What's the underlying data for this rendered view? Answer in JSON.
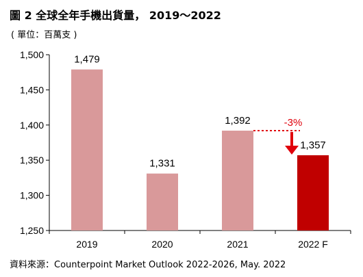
{
  "title": "圖 2 全球全年手機出貨量， 2019～2022",
  "unit_label": "( 單位：百萬支 )",
  "source": "資料來源：Counterpoint  Market Outlook 2022-2026, May. 2022",
  "colors": {
    "bar": "#d9999a",
    "highlight": "#c00000",
    "annotation": "#e0000b",
    "axis": "#000000"
  },
  "chart_data": {
    "type": "bar",
    "categories": [
      "2019",
      "2020",
      "2021",
      "2022 F"
    ],
    "values": [
      1479,
      1331,
      1392,
      1357
    ],
    "data_labels": [
      "1,479",
      "1,331",
      "1,392",
      "1,357"
    ],
    "highlight_index": 3,
    "ylim": [
      1250,
      1500
    ],
    "yticks": [
      1250,
      1300,
      1350,
      1400,
      1450,
      1500
    ],
    "ytick_labels": [
      "1,250",
      "1,300",
      "1,350",
      "1,400",
      "1,450",
      "1,500"
    ],
    "grid": false,
    "annotation": {
      "text": "-3%",
      "from_category": "2021",
      "to_category": "2022 F"
    }
  }
}
